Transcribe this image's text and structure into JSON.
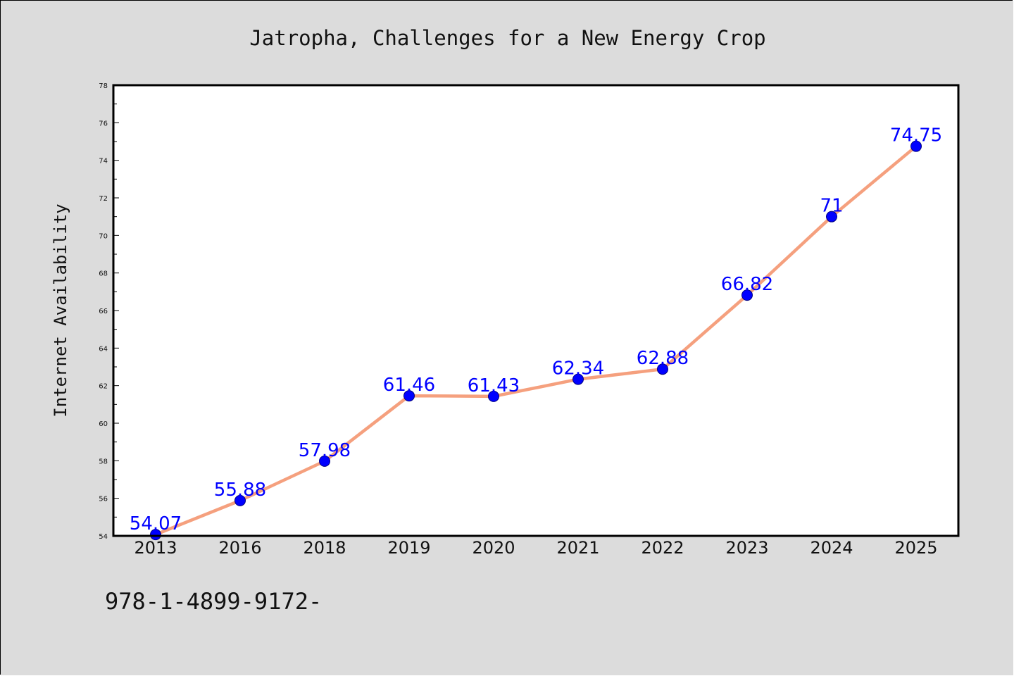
{
  "colors": {
    "figure_bg": "#dcdcdc",
    "plot_bg": "#ffffff",
    "line": "#f5a07e",
    "marker_fill": "#0000ff",
    "marker_edge": "#000080",
    "data_label": "#0000ff",
    "text": "#111111"
  },
  "footer": {
    "text": "978-1-4899-9172-"
  },
  "chart_data": {
    "type": "line",
    "title": "Jatropha, Challenges for a New Energy Crop",
    "xlabel": "",
    "ylabel": "Internet Availability",
    "categories": [
      "2013",
      "2016",
      "2018",
      "2019",
      "2020",
      "2021",
      "2022",
      "2023",
      "2024",
      "2025"
    ],
    "series": [
      {
        "values": [
          54.07,
          55.88,
          57.98,
          61.46,
          61.43,
          62.34,
          62.88,
          66.82,
          71,
          74.75
        ],
        "labels": [
          "54.07",
          "55.88",
          "57.98",
          "61.46",
          "61.43",
          "62.34",
          "62.88",
          "66.82",
          "71",
          "74.75"
        ],
        "marker": "circle"
      }
    ],
    "ylim": [
      54,
      78
    ],
    "yticks": [
      "54",
      "56",
      "58",
      "60",
      "62",
      "64",
      "66",
      "68",
      "70",
      "72",
      "74",
      "76",
      "78"
    ],
    "grid": false,
    "legend": "none"
  }
}
